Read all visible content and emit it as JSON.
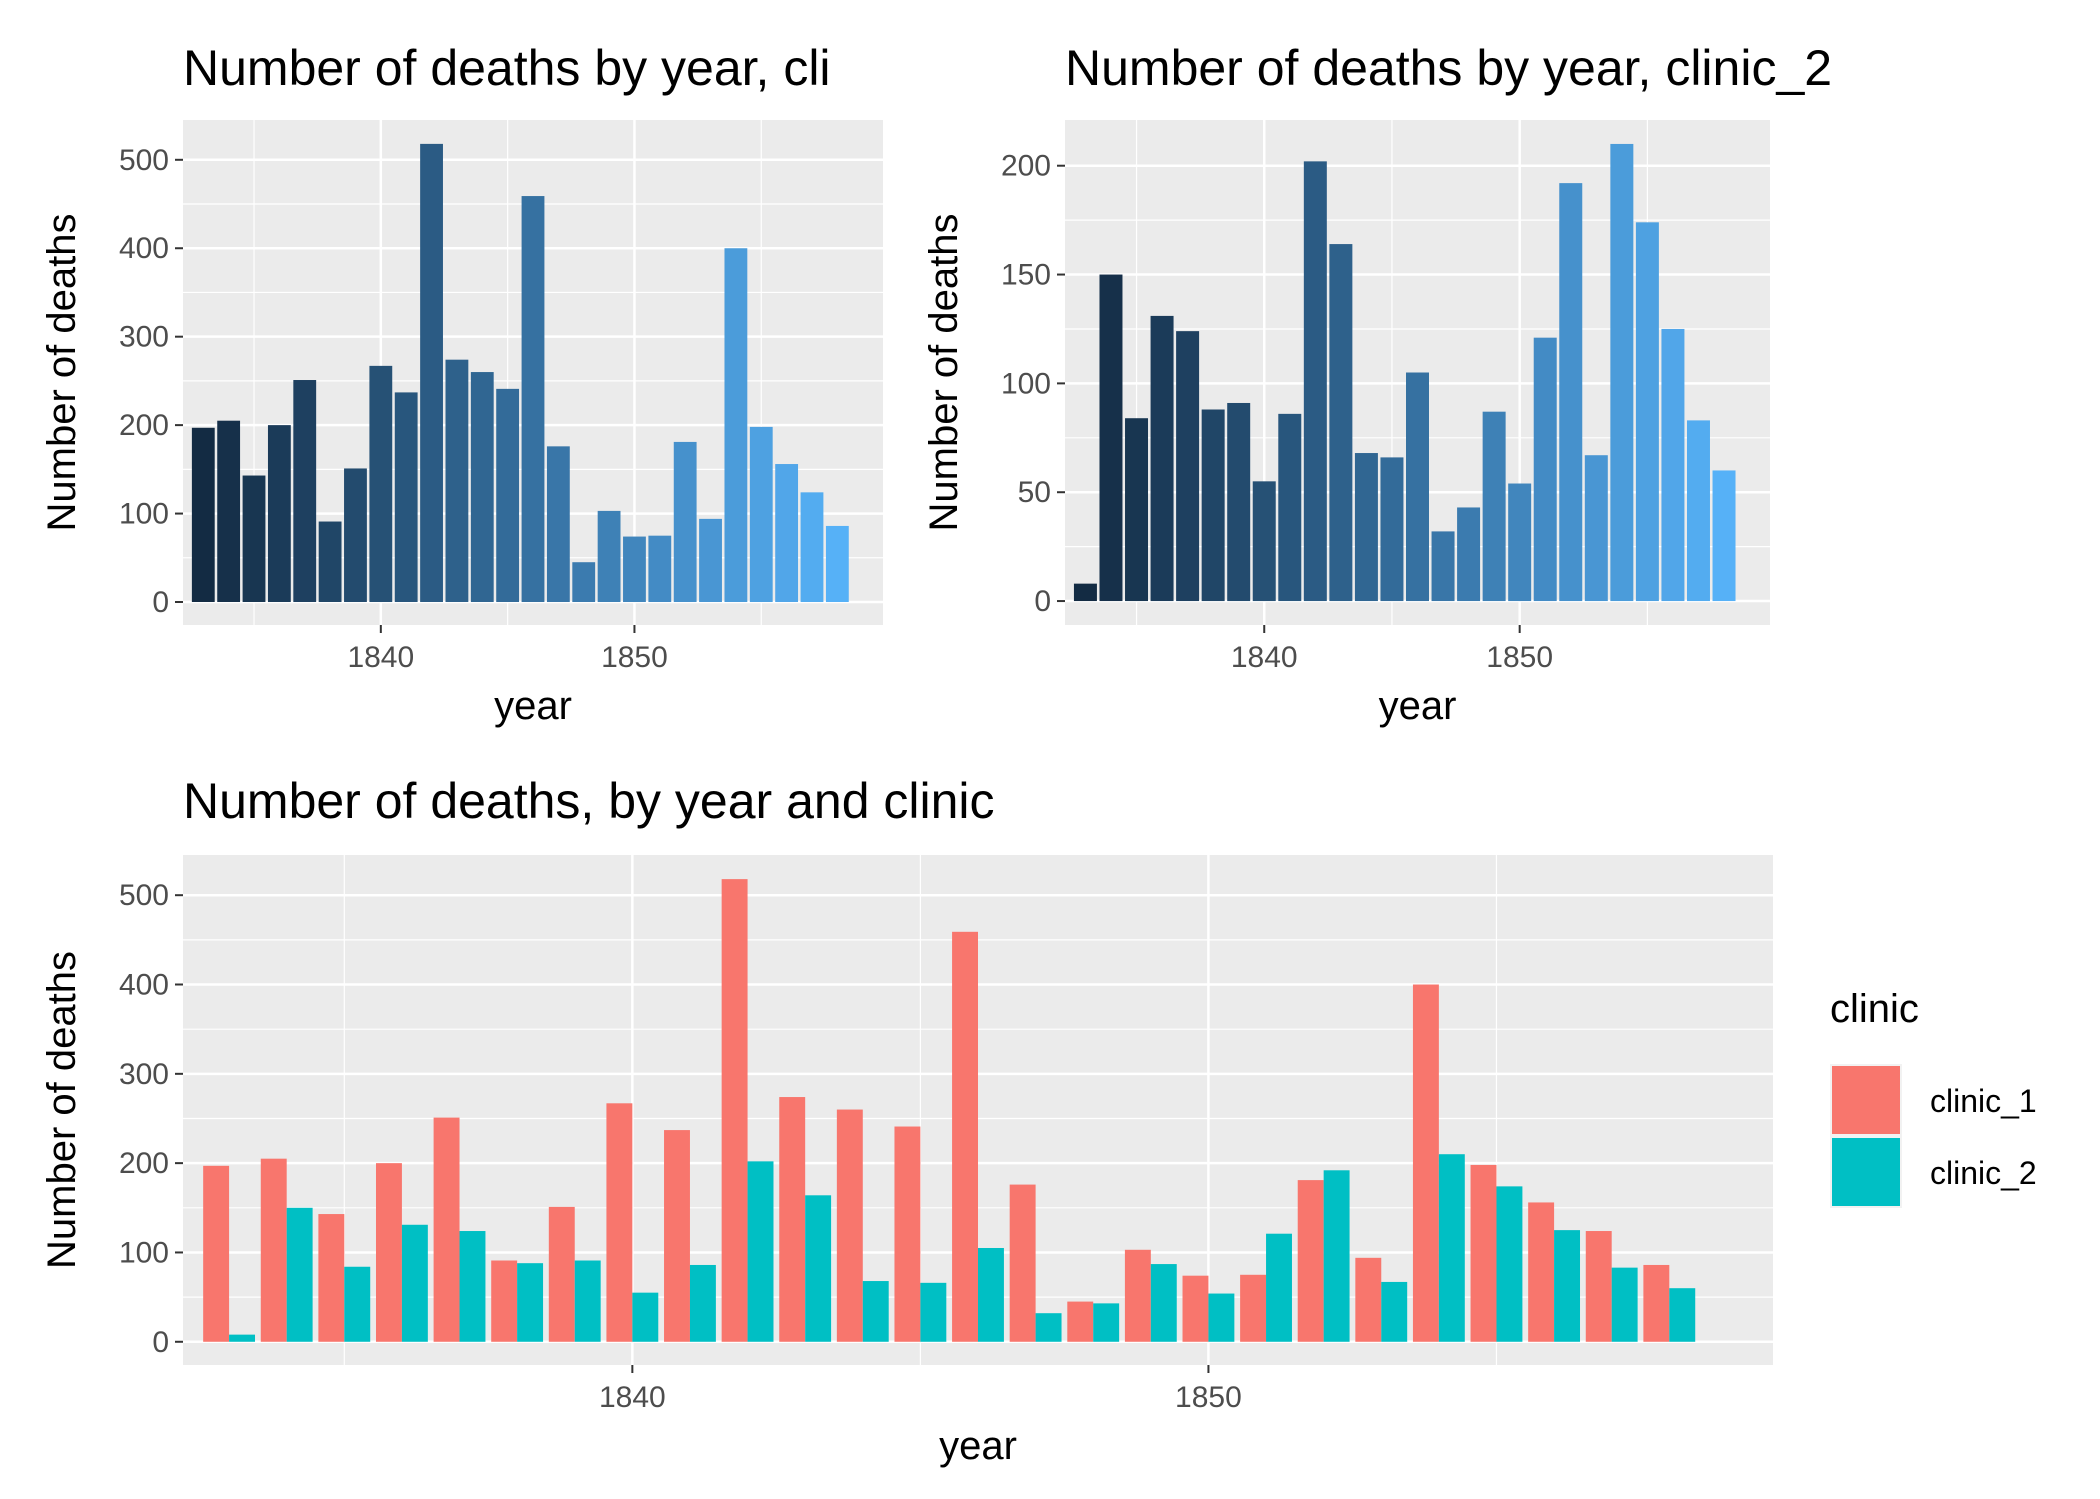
{
  "chart_data": [
    {
      "id": "clinic_1",
      "type": "bar",
      "title": "Number of deaths by year, cli",
      "xlabel": "year",
      "ylabel": "Number of deaths",
      "xlim": [
        1832.2,
        1859.8
      ],
      "ylim": [
        -26,
        545
      ],
      "xticks": [
        1840,
        1850
      ],
      "yticks": [
        0,
        100,
        200,
        300,
        400,
        500
      ],
      "grid": true,
      "fill": "gradient by year",
      "colors": [
        "#132B43",
        "#56B1F7"
      ],
      "years": [
        1833,
        1834,
        1835,
        1836,
        1837,
        1838,
        1839,
        1840,
        1841,
        1842,
        1843,
        1844,
        1845,
        1846,
        1847,
        1848,
        1849,
        1850,
        1851,
        1852,
        1853,
        1854,
        1855,
        1856,
        1857,
        1858
      ],
      "values": [
        197,
        205,
        143,
        200,
        251,
        91,
        151,
        267,
        237,
        518,
        274,
        260,
        241,
        459,
        176,
        45,
        103,
        74,
        75,
        181,
        94,
        400,
        198,
        156,
        124,
        86
      ]
    },
    {
      "id": "clinic_2",
      "type": "bar",
      "title": "Number of deaths by year, clinic_2",
      "xlabel": "year",
      "ylabel": "Number of deaths",
      "xlim": [
        1832.2,
        1859.8
      ],
      "ylim": [
        -11,
        221
      ],
      "xticks": [
        1840,
        1850
      ],
      "yticks": [
        0,
        50,
        100,
        150,
        200
      ],
      "grid": true,
      "fill": "gradient by year",
      "colors": [
        "#132B43",
        "#56B1F7"
      ],
      "years": [
        1833,
        1834,
        1835,
        1836,
        1837,
        1838,
        1839,
        1840,
        1841,
        1842,
        1843,
        1844,
        1845,
        1846,
        1847,
        1848,
        1849,
        1850,
        1851,
        1852,
        1853,
        1854,
        1855,
        1856,
        1857,
        1858
      ],
      "values": [
        8,
        150,
        84,
        131,
        124,
        88,
        91,
        55,
        86,
        202,
        164,
        68,
        66,
        105,
        32,
        43,
        87,
        54,
        121,
        192,
        67,
        210,
        174,
        125,
        83,
        60
      ]
    },
    {
      "id": "combined",
      "type": "bar",
      "title": "Number of deaths, by year and clinic",
      "xlabel": "year",
      "ylabel": "Number of deaths",
      "xlim": [
        1832.2,
        1859.8
      ],
      "ylim": [
        -26,
        545
      ],
      "xticks": [
        1840,
        1850
      ],
      "yticks": [
        0,
        100,
        200,
        300,
        400,
        500
      ],
      "grid": true,
      "legend": {
        "title": "clinic",
        "position": "right"
      },
      "years": [
        1833,
        1834,
        1835,
        1836,
        1837,
        1838,
        1839,
        1840,
        1841,
        1842,
        1843,
        1844,
        1845,
        1846,
        1847,
        1848,
        1849,
        1850,
        1851,
        1852,
        1853,
        1854,
        1855,
        1856,
        1857,
        1858
      ],
      "series": [
        {
          "name": "clinic_1",
          "color": "#F8766D",
          "values": [
            197,
            205,
            143,
            200,
            251,
            91,
            151,
            267,
            237,
            518,
            274,
            260,
            241,
            459,
            176,
            45,
            103,
            74,
            75,
            181,
            94,
            400,
            198,
            156,
            124,
            86
          ]
        },
        {
          "name": "clinic_2",
          "color": "#00BFC4",
          "values": [
            8,
            150,
            84,
            131,
            124,
            88,
            91,
            55,
            86,
            202,
            164,
            68,
            66,
            105,
            32,
            43,
            87,
            54,
            121,
            192,
            67,
            210,
            174,
            125,
            83,
            60
          ]
        }
      ]
    }
  ]
}
